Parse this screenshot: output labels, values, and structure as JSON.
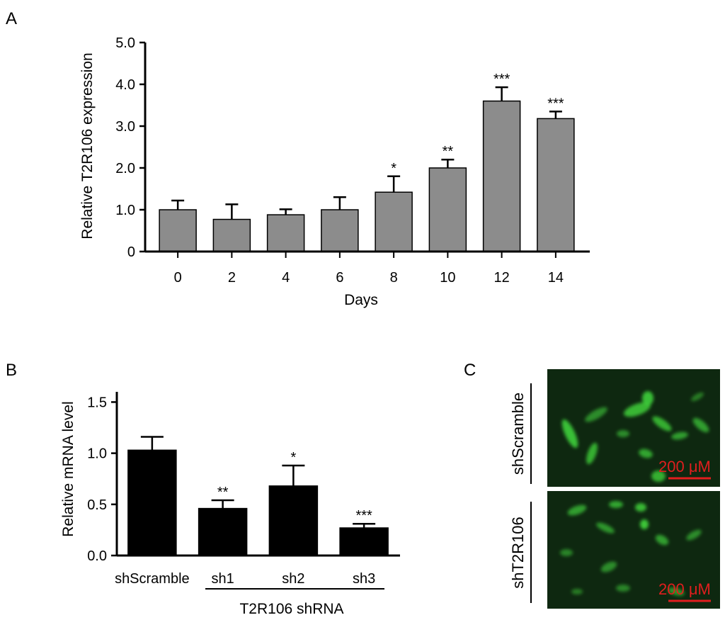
{
  "panels": {
    "a": {
      "letter": "A"
    },
    "b": {
      "letter": "B"
    },
    "c": {
      "letter": "C"
    }
  },
  "chart_data": [
    {
      "type": "bar",
      "panel": "A",
      "categories": [
        "0",
        "2",
        "4",
        "6",
        "8",
        "10",
        "12",
        "14"
      ],
      "values": [
        1.0,
        0.77,
        0.88,
        1.0,
        1.42,
        2.0,
        3.6,
        3.18
      ],
      "errors": [
        0.22,
        0.36,
        0.13,
        0.3,
        0.38,
        0.2,
        0.33,
        0.17
      ],
      "significance": [
        "",
        "",
        "",
        "",
        "*",
        "**",
        "***",
        "***"
      ],
      "xlabel": "Days",
      "ylabel": "Relative T2R106 expression",
      "yticks": [
        "0",
        "1.0",
        "2.0",
        "3.0",
        "4.0",
        "5.0"
      ],
      "ylim": [
        0,
        5.0
      ],
      "color": "#8c8c8c",
      "grid": false
    },
    {
      "type": "bar",
      "panel": "B",
      "categories": [
        "shScramble",
        "sh1",
        "sh2",
        "sh3"
      ],
      "values": [
        1.03,
        0.46,
        0.68,
        0.27
      ],
      "errors": [
        0.13,
        0.08,
        0.2,
        0.04
      ],
      "significance": [
        "",
        "**",
        "*",
        "***"
      ],
      "xlabel": "",
      "ylabel": "Relative mRNA level",
      "group_label": "T2R106 shRNA",
      "yticks": [
        "0.0",
        "0.5",
        "1.0",
        "1.5"
      ],
      "ylim": [
        0,
        1.6
      ],
      "color": "#000000",
      "grid": false
    }
  ],
  "images": [
    {
      "label": "shScramble",
      "scale_bar": "200 μM"
    },
    {
      "label": "shT2R106",
      "scale_bar": "200 μM"
    }
  ]
}
